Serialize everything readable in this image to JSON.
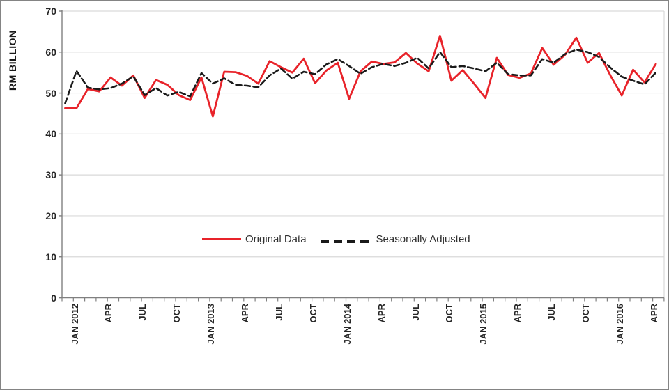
{
  "chart_data": {
    "type": "line",
    "ylabel": "RM BILLION",
    "ylim": [
      0,
      70
    ],
    "yticks": [
      0,
      10,
      20,
      30,
      40,
      50,
      60,
      70
    ],
    "grid": "horizontal",
    "legend_position": "inside-center-lower",
    "x_months_total": 53,
    "x_tick_labels": [
      {
        "index": 0,
        "label": "JAN 2012"
      },
      {
        "index": 3,
        "label": "APR"
      },
      {
        "index": 6,
        "label": "JUL"
      },
      {
        "index": 9,
        "label": "OCT"
      },
      {
        "index": 12,
        "label": "JAN 2013"
      },
      {
        "index": 15,
        "label": "APR"
      },
      {
        "index": 18,
        "label": "JUL"
      },
      {
        "index": 21,
        "label": "OCT"
      },
      {
        "index": 24,
        "label": "JAN 2014"
      },
      {
        "index": 27,
        "label": "APR"
      },
      {
        "index": 30,
        "label": "JUL"
      },
      {
        "index": 33,
        "label": "OCT"
      },
      {
        "index": 36,
        "label": "JAN 2015"
      },
      {
        "index": 39,
        "label": "APR"
      },
      {
        "index": 42,
        "label": "JUL"
      },
      {
        "index": 45,
        "label": "OCT"
      },
      {
        "index": 48,
        "label": "JAN 2016"
      },
      {
        "index": 51,
        "label": "APR"
      }
    ],
    "series": [
      {
        "name": "Original Data",
        "style": "solid",
        "color": "#E8232A",
        "values": [
          46.3,
          46.3,
          51.0,
          50.4,
          53.8,
          51.8,
          54.3,
          48.8,
          53.2,
          52.0,
          49.5,
          48.3,
          53.8,
          44.3,
          55.2,
          55.1,
          54.2,
          52.3,
          57.8,
          56.3,
          55.0,
          58.4,
          52.4,
          55.5,
          57.4,
          48.6,
          55.3,
          57.7,
          57.1,
          57.5,
          59.8,
          57.2,
          55.3,
          64.0,
          53.0,
          55.6,
          52.3,
          48.8,
          58.6,
          54.4,
          53.7,
          54.8,
          61.0,
          56.9,
          59.3,
          63.5,
          57.4,
          59.8,
          54.3,
          49.4,
          55.7,
          52.6,
          57.1
        ]
      },
      {
        "name": "Seasonally Adjusted",
        "style": "dashed",
        "color": "#1a1a1a",
        "values": [
          47.5,
          55.4,
          51.3,
          50.9,
          51.2,
          52.3,
          54.1,
          49.5,
          51.2,
          49.4,
          50.3,
          49.2,
          54.9,
          52.3,
          53.6,
          52.0,
          51.8,
          51.4,
          54.3,
          56.0,
          53.5,
          55.2,
          54.6,
          57.0,
          58.3,
          56.6,
          54.7,
          56.3,
          57.1,
          56.6,
          57.4,
          58.6,
          56.0,
          60.0,
          56.3,
          56.6,
          56.0,
          55.3,
          57.4,
          54.6,
          54.3,
          54.3,
          58.3,
          57.4,
          59.5,
          60.6,
          60.0,
          58.8,
          56.2,
          54.0,
          53.0,
          52.1,
          55.0
        ]
      }
    ],
    "axis_color": "#808080",
    "gridline_color": "#D9D9D9"
  },
  "legend": {
    "original_label": "Original Data",
    "adjusted_label": "Seasonally Adjusted"
  }
}
